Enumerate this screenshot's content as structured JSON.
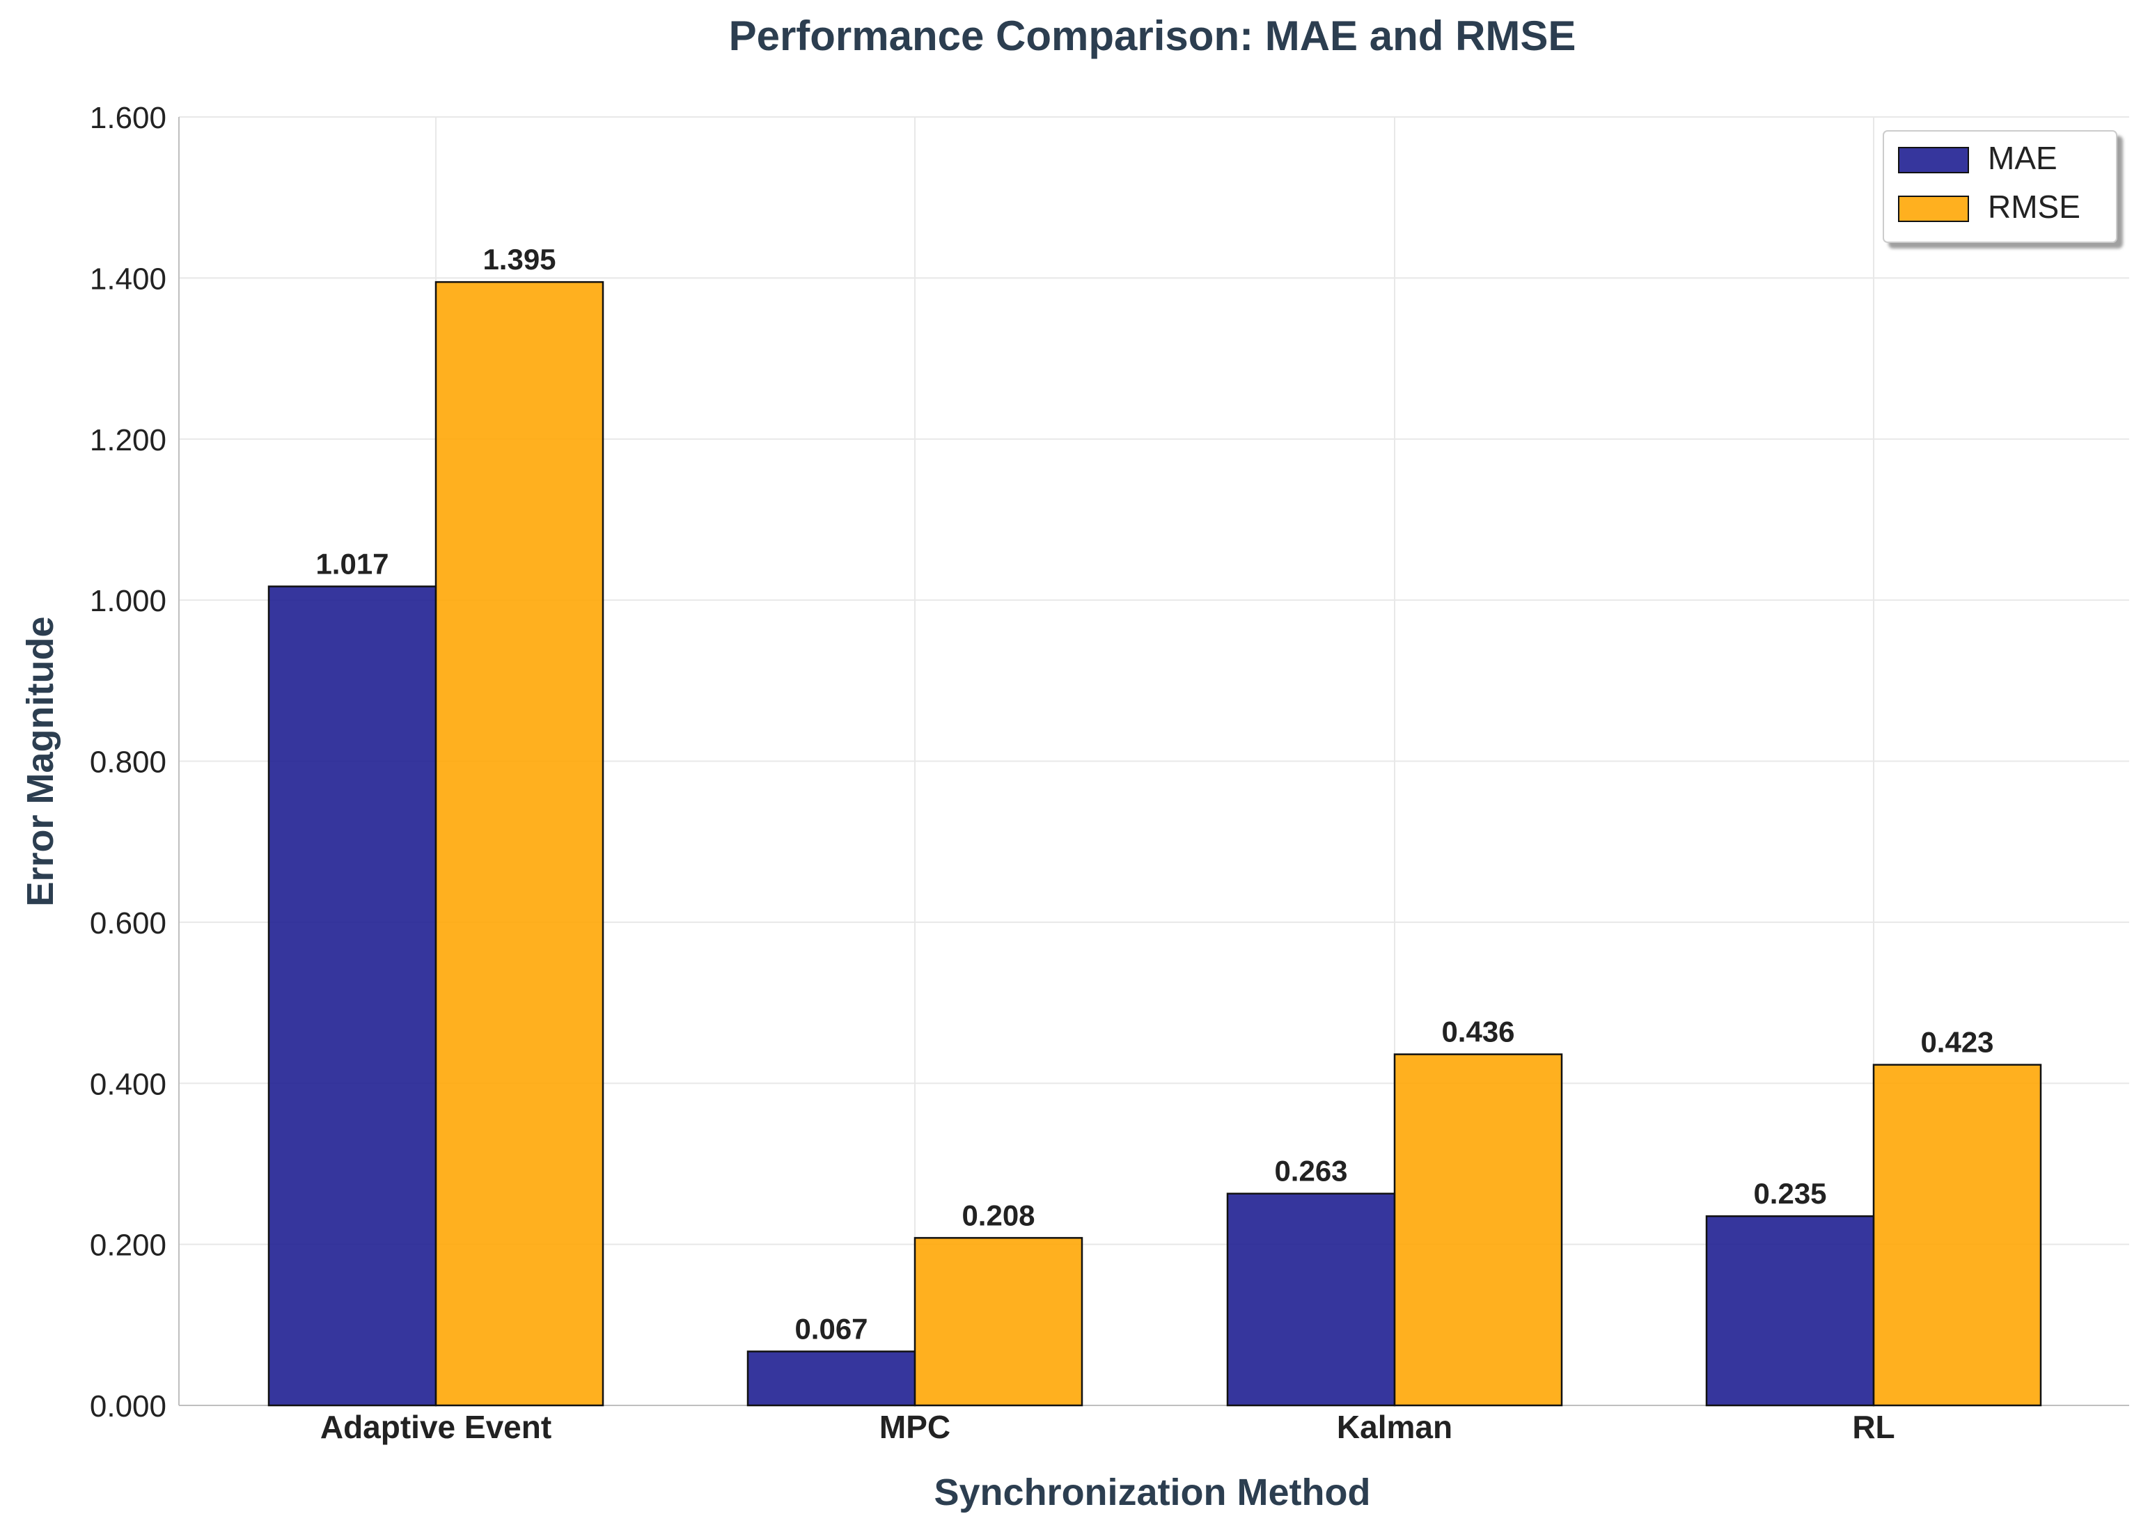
{
  "chart_data": {
    "type": "bar",
    "title": "Performance Comparison: MAE and RMSE",
    "xlabel": "Synchronization Method",
    "ylabel": "Error Magnitude",
    "categories": [
      "Adaptive Event",
      "MPC",
      "Kalman",
      "RL"
    ],
    "series": [
      {
        "name": "MAE",
        "color": "#1a1a8f",
        "values": [
          1.017,
          0.067,
          0.263,
          0.235
        ]
      },
      {
        "name": "RMSE",
        "color": "#ffa500",
        "values": [
          1.395,
          0.208,
          0.436,
          0.423
        ]
      }
    ],
    "ylim": [
      0,
      1.6
    ],
    "yticks": [
      "0.000",
      "0.200",
      "0.400",
      "0.600",
      "0.800",
      "1.000",
      "1.200",
      "1.400",
      "1.600"
    ],
    "grid": true,
    "legend_position": "top-right"
  }
}
